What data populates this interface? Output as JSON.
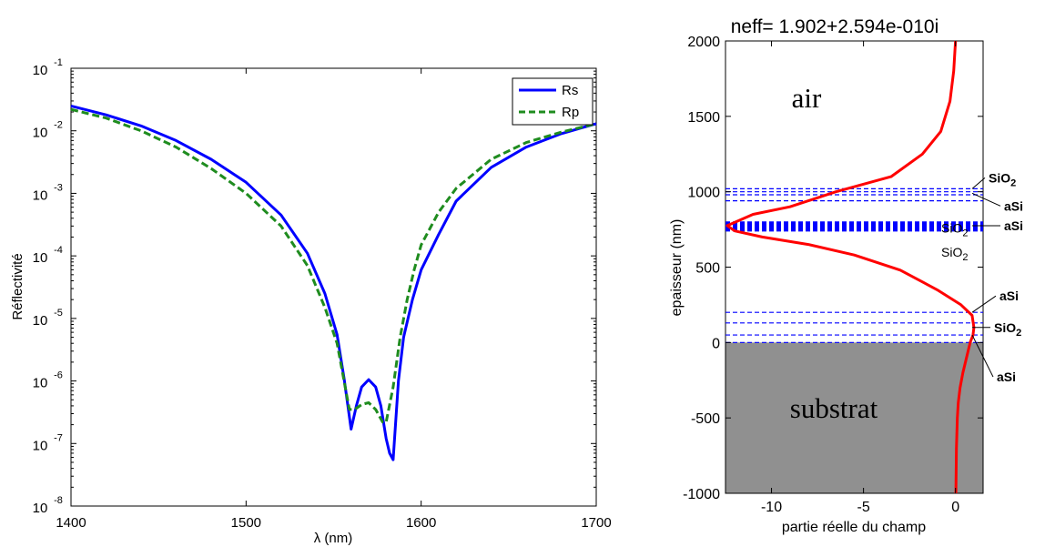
{
  "chart_data": [
    {
      "type": "line",
      "xlabel": "λ (nm)",
      "ylabel": "Réflectivité",
      "xlim": [
        1400,
        1700
      ],
      "ylim_log10": [
        -8,
        -1
      ],
      "yscale": "log",
      "x_ticks": [
        "1400",
        "1500",
        "1600",
        "1700"
      ],
      "y_ticks": [
        {
          "base": "10",
          "exp": "-1"
        },
        {
          "base": "10",
          "exp": "-2"
        },
        {
          "base": "10",
          "exp": "-3"
        },
        {
          "base": "10",
          "exp": "-4"
        },
        {
          "base": "10",
          "exp": "-5"
        },
        {
          "base": "10",
          "exp": "-6"
        },
        {
          "base": "10",
          "exp": "-7"
        },
        {
          "base": "10",
          "exp": "-8"
        }
      ],
      "legend_position": "top-right",
      "series": [
        {
          "name": "Rs",
          "color": "#0000ff",
          "style": "solid",
          "x": [
            1400,
            1420,
            1440,
            1460,
            1480,
            1500,
            1520,
            1535,
            1545,
            1552,
            1556,
            1560,
            1563,
            1566,
            1570,
            1574,
            1577,
            1580,
            1582,
            1584,
            1587,
            1590,
            1595,
            1600,
            1610,
            1620,
            1640,
            1660,
            1680,
            1700
          ],
          "y": [
            0.025,
            0.018,
            0.012,
            0.007,
            0.0035,
            0.0015,
            0.00045,
            0.00011,
            2.5e-05,
            5.5e-06,
            1.1e-06,
            1.7e-07,
            4e-07,
            8e-07,
            1.05e-06,
            8e-07,
            4e-07,
            1.2e-07,
            7e-08,
            5.5e-08,
            1e-06,
            5e-06,
            2e-05,
            6e-05,
            0.00022,
            0.00075,
            0.0026,
            0.0055,
            0.009,
            0.013
          ]
        },
        {
          "name": "Rp",
          "color": "#1f8c1f",
          "style": "dashed",
          "x": [
            1400,
            1420,
            1440,
            1460,
            1480,
            1500,
            1520,
            1535,
            1545,
            1552,
            1556,
            1559,
            1562,
            1566,
            1570,
            1574,
            1578,
            1580,
            1584,
            1588,
            1592,
            1596,
            1600,
            1610,
            1620,
            1640,
            1660,
            1680,
            1700
          ],
          "y": [
            0.022,
            0.016,
            0.01,
            0.0055,
            0.0025,
            0.001,
            0.0003,
            7e-05,
            1.5e-05,
            4e-06,
            1e-06,
            3.5e-07,
            3.5e-07,
            4.2e-07,
            4.5e-07,
            3.5e-07,
            2.2e-07,
            2.2e-07,
            8e-07,
            5e-06,
            2e-05,
            6e-05,
            0.00015,
            0.0005,
            0.0012,
            0.0035,
            0.0065,
            0.0095,
            0.013
          ]
        }
      ]
    },
    {
      "type": "line",
      "title": "neff=  1.902+2.594e-010i",
      "xlabel": "partie réelle du champ",
      "ylabel": "epaisseur (nm)",
      "xlim": [
        -12.5,
        1.5
      ],
      "ylim": [
        -1000,
        2000
      ],
      "x_ticks": [
        -10,
        -5,
        0
      ],
      "y_ticks": [
        -1000,
        -500,
        0,
        500,
        1000,
        1500,
        2000
      ],
      "x_tick_labels": [
        "-10",
        "-5",
        "0"
      ],
      "y_tick_labels": [
        "-1000",
        "-500",
        "0",
        "500",
        "1000",
        "1500",
        "2000"
      ],
      "substrate": {
        "from": -1000,
        "to": 0,
        "color": "#909090"
      },
      "layer_lines": [
        0,
        50,
        130,
        200,
        740,
        745,
        750,
        755,
        760,
        765,
        770,
        775,
        780,
        785,
        790,
        795,
        800,
        940,
        980,
        1000,
        1020
      ],
      "region_labels": {
        "air": "air",
        "substrat": "substrat"
      },
      "layer_annotations": [
        {
          "base": "SiO",
          "sub": "2",
          "bold": true,
          "at": 1020
        },
        {
          "base": "aSi",
          "sub": "",
          "bold": true,
          "at": 990
        },
        {
          "base": "SiO",
          "sub": "2",
          "bold": false,
          "at": 880
        },
        {
          "base": "aSi",
          "sub": "",
          "bold": true,
          "at": 775
        },
        {
          "base": "SiO",
          "sub": "2",
          "bold": false,
          "at": 600
        },
        {
          "base": "aSi",
          "sub": "",
          "bold": true,
          "at": 200
        },
        {
          "base": "SiO",
          "sub": "2",
          "bold": true,
          "at": 100
        },
        {
          "base": "aSi",
          "sub": "",
          "bold": true,
          "at": 50
        }
      ],
      "series": [
        {
          "name": "",
          "color": "#ff0000",
          "x": [
            0,
            -0.1,
            -0.3,
            -0.8,
            -1.8,
            -3.5,
            -6.5,
            -9,
            -11,
            -12.4,
            -12,
            -10.5,
            -8,
            -5.5,
            -3,
            -1,
            0.3,
            0.9,
            1.0,
            0.95,
            0.8,
            0.6,
            0.4,
            0.25,
            0.15,
            0.1,
            0.05,
            0.02
          ],
          "y": [
            2000,
            1800,
            1600,
            1400,
            1250,
            1100,
            1000,
            900,
            850,
            775,
            740,
            700,
            650,
            580,
            480,
            350,
            250,
            180,
            100,
            50,
            0,
            -100,
            -200,
            -300,
            -400,
            -500,
            -700,
            -1000
          ]
        }
      ]
    }
  ]
}
